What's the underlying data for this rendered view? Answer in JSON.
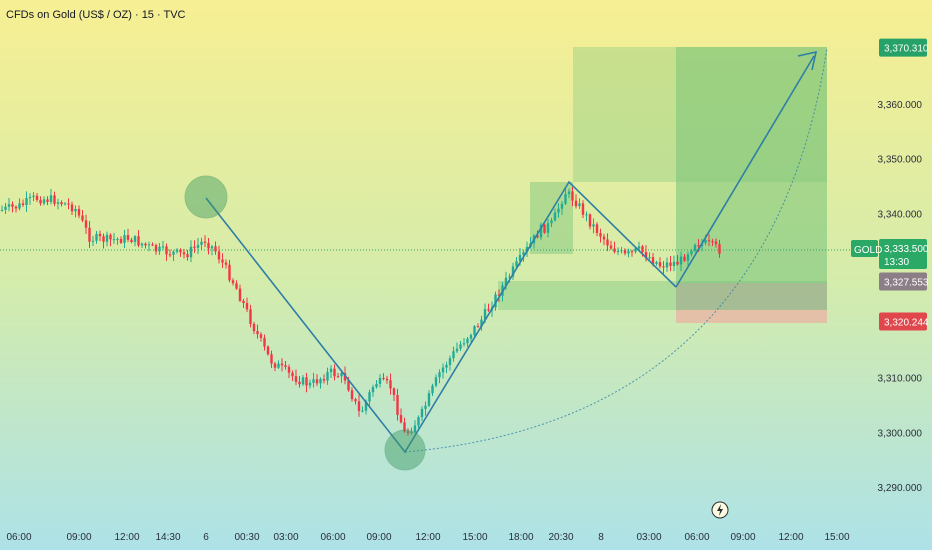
{
  "header": {
    "title": "CFDs on Gold (US$ / OZ) · 15 · TVC"
  },
  "chart_data": {
    "type": "candlestick",
    "symbol": "GOLD",
    "y_ticks": [
      "3,360.000",
      "3,350.000",
      "3,340.000",
      "3,310.000",
      "3,300.000",
      "3,290.000"
    ],
    "y_tick_values": [
      3360,
      3350,
      3340,
      3310,
      3300,
      3290
    ],
    "x_ticks": [
      "06:00",
      "09:00",
      "12:00",
      "14:30",
      "6",
      "00:30",
      "03:00",
      "06:00",
      "09:00",
      "12:00",
      "15:00",
      "18:00",
      "20:30",
      "8",
      "03:00",
      "06:00",
      "09:00",
      "12:00",
      "15:00"
    ],
    "price_labels": {
      "target": {
        "text": "3,370.310",
        "value": 3370.31,
        "color": "#26a269"
      },
      "current": {
        "text": "3,333.500",
        "value": 3333.5,
        "countdown": "13:30",
        "color": "#2aa865"
      },
      "entry": {
        "text": "3,327.553",
        "value": 3327.553,
        "color": "#8c7e86"
      },
      "stop": {
        "text": "3,320.244",
        "value": 3320.244,
        "color": "#e0474c"
      }
    },
    "colors": {
      "up": "#22ab94",
      "down": "#f23645",
      "line": "#2f7ea6"
    }
  }
}
